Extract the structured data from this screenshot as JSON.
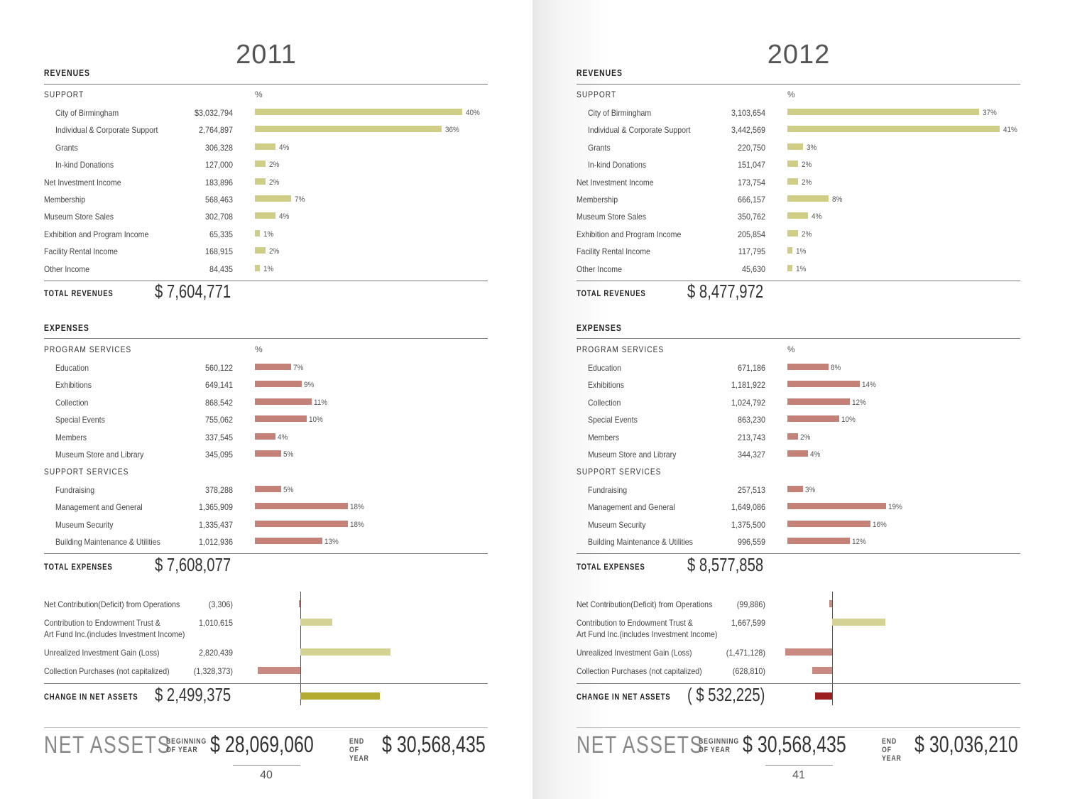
{
  "pages": [
    {
      "year": "2011",
      "revenues_heading": "REVENUES",
      "support_heading": "SUPPORT",
      "pct_header": "%",
      "revenue_rows": [
        {
          "label": "City of Birmingham",
          "value": "$3,032,794",
          "pct": "40%",
          "pct_value": 40,
          "indent": true
        },
        {
          "label": "Individual & Corporate Support",
          "value": "2,764,897",
          "pct": "36%",
          "pct_value": 36,
          "indent": true
        },
        {
          "label": "Grants",
          "value": "306,328",
          "pct": "4%",
          "pct_value": 4,
          "indent": true
        },
        {
          "label": "In-kind Donations",
          "value": "127,000",
          "pct": "2%",
          "pct_value": 2,
          "indent": true
        },
        {
          "label": "Net Investment Income",
          "value": "183,896",
          "pct": "2%",
          "pct_value": 2,
          "indent": false
        },
        {
          "label": "Membership",
          "value": "568,463",
          "pct": "7%",
          "pct_value": 7,
          "indent": false
        },
        {
          "label": "Museum Store Sales",
          "value": "302,708",
          "pct": "4%",
          "pct_value": 4,
          "indent": false
        },
        {
          "label": "Exhibition and Program Income",
          "value": "65,335",
          "pct": "1%",
          "pct_value": 1,
          "indent": false
        },
        {
          "label": "Facility Rental Income",
          "value": "168,915",
          "pct": "2%",
          "pct_value": 2,
          "indent": false
        },
        {
          "label": "Other Income",
          "value": "84,435",
          "pct": "1%",
          "pct_value": 1,
          "indent": false
        }
      ],
      "total_revenues_label": "TOTAL REVENUES",
      "total_revenues": "$ 7,604,771",
      "expenses_heading": "EXPENSES",
      "program_heading": "PROGRAM SERVICES",
      "program_rows": [
        {
          "label": "Education",
          "value": "560,122",
          "pct": "7%",
          "pct_value": 7
        },
        {
          "label": "Exhibitions",
          "value": "649,141",
          "pct": "9%",
          "pct_value": 9
        },
        {
          "label": "Collection",
          "value": "868,542",
          "pct": "11%",
          "pct_value": 11
        },
        {
          "label": "Special Events",
          "value": "755,062",
          "pct": "10%",
          "pct_value": 10
        },
        {
          "label": "Members",
          "value": "337,545",
          "pct": "4%",
          "pct_value": 4
        },
        {
          "label": "Museum Store and Library",
          "value": "345,095",
          "pct": "5%",
          "pct_value": 5
        }
      ],
      "support_services_heading": "SUPPORT SERVICES",
      "support_rows": [
        {
          "label": "Fundraising",
          "value": "378,288",
          "pct": "5%",
          "pct_value": 5
        },
        {
          "label": "Management and General",
          "value": "1,365,909",
          "pct": "18%",
          "pct_value": 18
        },
        {
          "label": "Museum Security",
          "value": "1,335,437",
          "pct": "18%",
          "pct_value": 18
        },
        {
          "label": "Building Maintenance & Utilities",
          "value": "1,012,936",
          "pct": "13%",
          "pct_value": 13
        }
      ],
      "total_expenses_label": "TOTAL EXPENSES",
      "total_expenses": "$ 7,608,077",
      "net_rows": [
        {
          "label": "Net Contribution(Deficit) from Operations",
          "value": "(3,306)",
          "amount": -3306
        },
        {
          "label": "Contribution to Endowment Trust &\nArt Fund Inc.(includes Investment Income)",
          "value": "1,010,615",
          "amount": 1010615
        },
        {
          "label": "Unrealized Investment Gain (Loss)",
          "value": "2,820,439",
          "amount": 2820439
        },
        {
          "label": "Collection Purchases (not capitalized)",
          "value": "(1,328,373)",
          "amount": -1328373
        }
      ],
      "change_label": "CHANGE IN NET ASSETS",
      "change_value": "$ 2,499,375",
      "change_amount": 2499375,
      "net_assets_label": "NET ASSETS",
      "beginning_label": "BEGINNING OF YEAR",
      "beginning_value": "$ 28,069,060",
      "end_label": "END OF YEAR",
      "end_value": "$ 30,568,435",
      "page_number": "40"
    },
    {
      "year": "2012",
      "revenues_heading": "REVENUES",
      "support_heading": "SUPPORT",
      "pct_header": "%",
      "revenue_rows": [
        {
          "label": "City of Birmingham",
          "value": "3,103,654",
          "pct": "37%",
          "pct_value": 37,
          "indent": true
        },
        {
          "label": "Individual & Corporate Support",
          "value": "3,442,569",
          "pct": "41%",
          "pct_value": 41,
          "indent": true
        },
        {
          "label": "Grants",
          "value": "220,750",
          "pct": "3%",
          "pct_value": 3,
          "indent": true
        },
        {
          "label": "In-kind Donations",
          "value": "151,047",
          "pct": "2%",
          "pct_value": 2,
          "indent": true
        },
        {
          "label": "Net Investment Income",
          "value": "173,754",
          "pct": "2%",
          "pct_value": 2,
          "indent": false
        },
        {
          "label": "Membership",
          "value": "666,157",
          "pct": "8%",
          "pct_value": 8,
          "indent": false
        },
        {
          "label": "Museum Store Sales",
          "value": "350,762",
          "pct": "4%",
          "pct_value": 4,
          "indent": false
        },
        {
          "label": "Exhibition and Program Income",
          "value": "205,854",
          "pct": "2%",
          "pct_value": 2,
          "indent": false
        },
        {
          "label": "Facility Rental Income",
          "value": "117,795",
          "pct": "1%",
          "pct_value": 1,
          "indent": false
        },
        {
          "label": "Other Income",
          "value": "45,630",
          "pct": "1%",
          "pct_value": 1,
          "indent": false
        }
      ],
      "total_revenues_label": "TOTAL REVENUES",
      "total_revenues": "$ 8,477,972",
      "expenses_heading": "EXPENSES",
      "program_heading": "PROGRAM SERVICES",
      "program_rows": [
        {
          "label": "Education",
          "value": "671,186",
          "pct": "8%",
          "pct_value": 8
        },
        {
          "label": "Exhibitions",
          "value": "1,181,922",
          "pct": "14%",
          "pct_value": 14
        },
        {
          "label": "Collection",
          "value": "1,024,792",
          "pct": "12%",
          "pct_value": 12
        },
        {
          "label": "Special Events",
          "value": "863,230",
          "pct": "10%",
          "pct_value": 10
        },
        {
          "label": "Members",
          "value": "213,743",
          "pct": "2%",
          "pct_value": 2
        },
        {
          "label": "Museum Store and Library",
          "value": "344,327",
          "pct": "4%",
          "pct_value": 4
        }
      ],
      "support_services_heading": "SUPPORT SERVICES",
      "support_rows": [
        {
          "label": "Fundraising",
          "value": "257,513",
          "pct": "3%",
          "pct_value": 3
        },
        {
          "label": "Management and General",
          "value": "1,649,086",
          "pct": "19%",
          "pct_value": 19
        },
        {
          "label": "Museum Security",
          "value": "1,375,500",
          "pct": "16%",
          "pct_value": 16
        },
        {
          "label": "Building Maintenance & Utilities",
          "value": "996,559",
          "pct": "12%",
          "pct_value": 12
        }
      ],
      "total_expenses_label": "TOTAL EXPENSES",
      "total_expenses": "$ 8,577,858",
      "net_rows": [
        {
          "label": "Net Contribution(Deficit) from Operations",
          "value": "(99,886)",
          "amount": -99886
        },
        {
          "label": "Contribution to Endowment Trust &\nArt Fund Inc.(includes Investment Income)",
          "value": "1,667,599",
          "amount": 1667599
        },
        {
          "label": "Unrealized Investment Gain (Loss)",
          "value": "(1,471,128)",
          "amount": -1471128
        },
        {
          "label": "Collection Purchases (not capitalized)",
          "value": "(628,810)",
          "amount": -628810
        }
      ],
      "change_label": "CHANGE IN NET ASSETS",
      "change_value": "( $ 532,225)",
      "change_amount": -532225,
      "net_assets_label": "NET ASSETS",
      "beginning_label": "BEGINNING OF YEAR",
      "beginning_value": "$ 30,568,435",
      "end_label": "END OF YEAR",
      "end_value": "$ 30,036,210",
      "page_number": "41"
    }
  ]
}
